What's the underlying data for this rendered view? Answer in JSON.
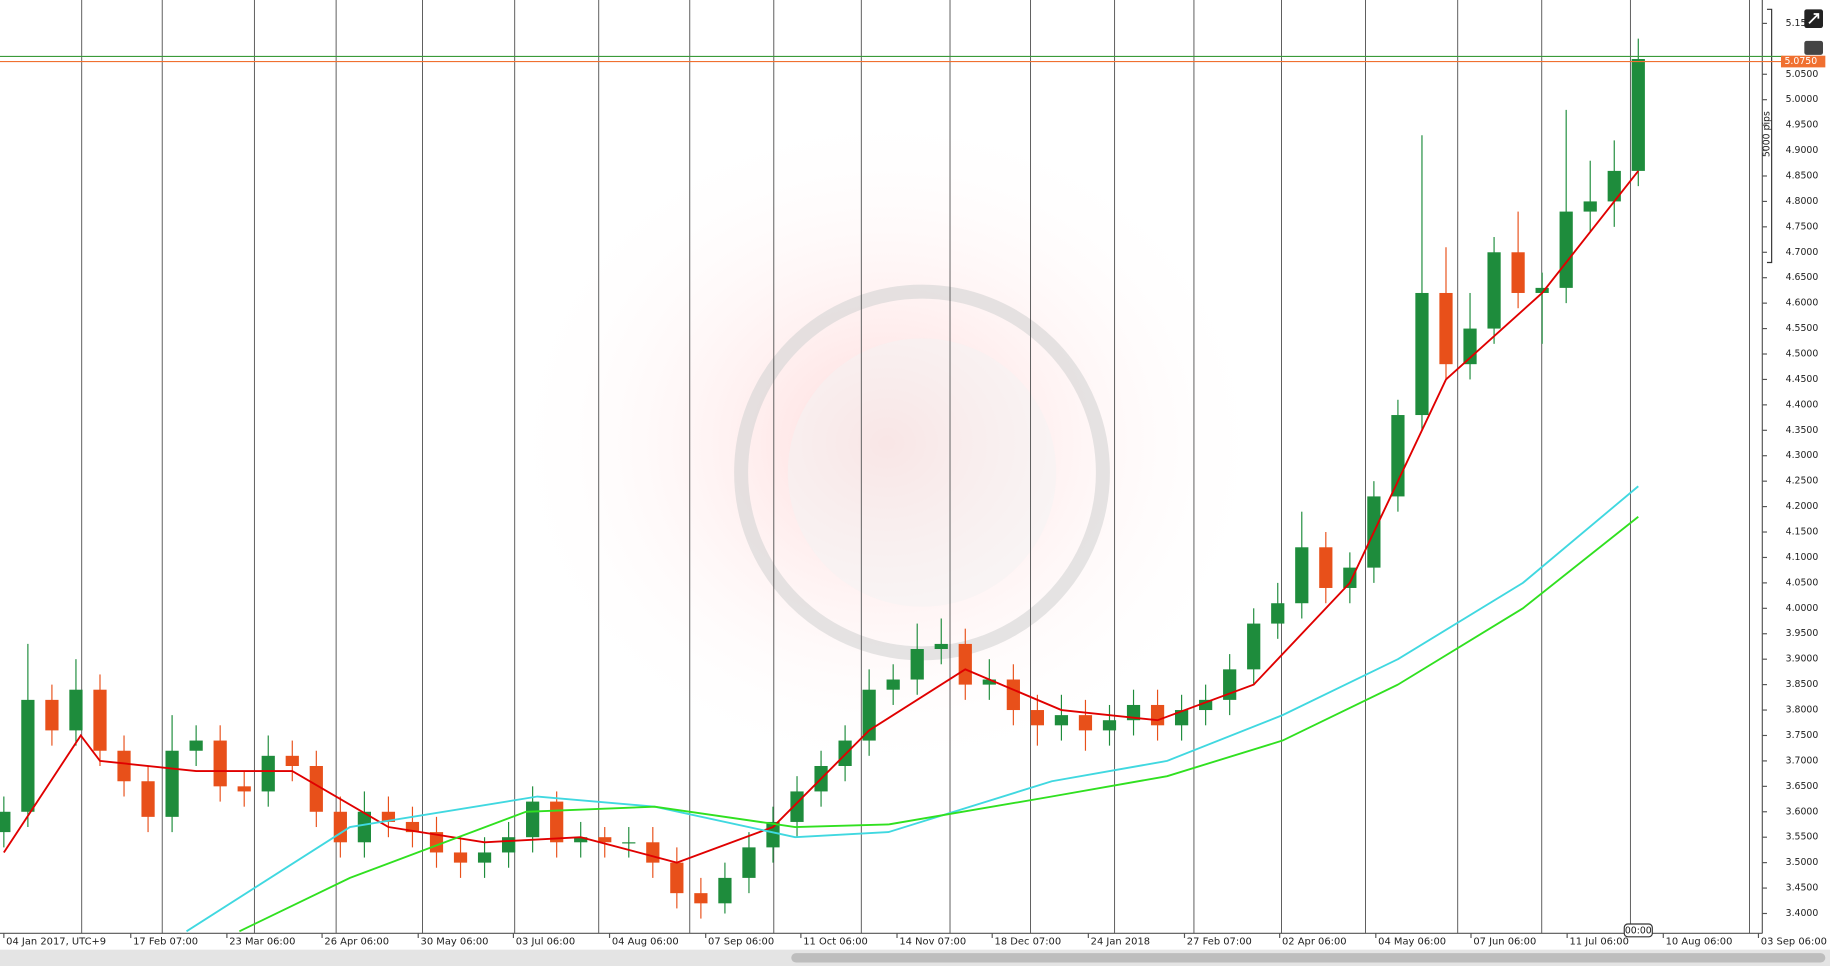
{
  "chart_data": {
    "type": "candlestick",
    "up_color": "#1e8c3c",
    "down_color": "#e8501a",
    "x": [
      0,
      0.25,
      0.5,
      0.75,
      1,
      1.25,
      1.5,
      1.75,
      2,
      2.25,
      2.5,
      2.75,
      3,
      3.25,
      3.5,
      3.75,
      4,
      4.25,
      4.5,
      4.75,
      5,
      5.25,
      5.5,
      5.75,
      6,
      6.25,
      6.5,
      6.75,
      7,
      7.25,
      7.5,
      7.75,
      8,
      8.25,
      8.5,
      8.75,
      9,
      9.25,
      9.5,
      9.75,
      10,
      10.25,
      10.5,
      10.75,
      11,
      11.25,
      11.5,
      11.75,
      12,
      12.25,
      12.5,
      12.75,
      13,
      13.25,
      13.5,
      13.75,
      14,
      14.25,
      14.5,
      14.75,
      15,
      15.25,
      15.5,
      15.75,
      16,
      16.25,
      16.5,
      16.75,
      17
    ],
    "open": [
      3.56,
      3.6,
      3.82,
      3.76,
      3.84,
      3.72,
      3.66,
      3.59,
      3.72,
      3.74,
      3.65,
      3.64,
      3.71,
      3.69,
      3.6,
      3.54,
      3.6,
      3.58,
      3.56,
      3.52,
      3.5,
      3.52,
      3.55,
      3.62,
      3.54,
      3.55,
      3.54,
      3.54,
      3.5,
      3.44,
      3.42,
      3.47,
      3.53,
      3.58,
      3.64,
      3.69,
      3.74,
      3.84,
      3.86,
      3.92,
      3.93,
      3.85,
      3.86,
      3.8,
      3.77,
      3.79,
      3.76,
      3.78,
      3.81,
      3.77,
      3.8,
      3.82,
      3.88,
      3.97,
      4.01,
      4.12,
      4.04,
      4.08,
      4.22,
      4.38,
      4.62,
      4.48,
      4.55,
      4.7,
      4.62,
      4.63,
      4.78,
      4.8,
      4.86
    ],
    "high": [
      3.63,
      3.93,
      3.85,
      3.9,
      3.87,
      3.75,
      3.69,
      3.79,
      3.77,
      3.77,
      3.68,
      3.75,
      3.74,
      3.72,
      3.63,
      3.64,
      3.63,
      3.61,
      3.59,
      3.55,
      3.55,
      3.58,
      3.65,
      3.64,
      3.58,
      3.57,
      3.57,
      3.57,
      3.53,
      3.47,
      3.5,
      3.56,
      3.61,
      3.67,
      3.72,
      3.77,
      3.88,
      3.89,
      3.97,
      3.98,
      3.96,
      3.9,
      3.89,
      3.83,
      3.83,
      3.82,
      3.81,
      3.84,
      3.84,
      3.83,
      3.85,
      3.91,
      4.0,
      4.05,
      4.19,
      4.15,
      4.11,
      4.25,
      4.41,
      4.93,
      4.71,
      4.62,
      4.73,
      4.78,
      4.66,
      4.98,
      4.88,
      4.92,
      5.12
    ],
    "low": [
      3.53,
      3.57,
      3.73,
      3.73,
      3.69,
      3.63,
      3.56,
      3.56,
      3.69,
      3.62,
      3.61,
      3.61,
      3.66,
      3.57,
      3.51,
      3.51,
      3.55,
      3.53,
      3.49,
      3.47,
      3.47,
      3.49,
      3.52,
      3.51,
      3.51,
      3.51,
      3.51,
      3.47,
      3.41,
      3.39,
      3.4,
      3.44,
      3.5,
      3.55,
      3.61,
      3.66,
      3.71,
      3.81,
      3.83,
      3.89,
      3.82,
      3.82,
      3.77,
      3.73,
      3.74,
      3.72,
      3.73,
      3.75,
      3.74,
      3.74,
      3.77,
      3.79,
      3.85,
      3.94,
      3.98,
      4.01,
      4.01,
      4.05,
      4.19,
      4.35,
      4.45,
      4.45,
      4.52,
      4.59,
      4.52,
      4.6,
      4.74,
      4.75,
      4.83
    ],
    "close": [
      3.6,
      3.82,
      3.76,
      3.84,
      3.72,
      3.66,
      3.59,
      3.72,
      3.74,
      3.65,
      3.64,
      3.71,
      3.69,
      3.6,
      3.54,
      3.6,
      3.58,
      3.56,
      3.52,
      3.5,
      3.52,
      3.55,
      3.62,
      3.54,
      3.55,
      3.54,
      3.54,
      3.5,
      3.44,
      3.42,
      3.47,
      3.53,
      3.58,
      3.64,
      3.69,
      3.74,
      3.84,
      3.86,
      3.92,
      3.93,
      3.85,
      3.86,
      3.8,
      3.77,
      3.79,
      3.76,
      3.78,
      3.81,
      3.77,
      3.8,
      3.82,
      3.88,
      3.97,
      4.01,
      4.12,
      4.04,
      4.08,
      4.22,
      4.38,
      4.62,
      4.48,
      4.55,
      4.7,
      4.62,
      4.63,
      4.78,
      4.8,
      4.86,
      5.08
    ],
    "series": [
      {
        "color": "#e00000",
        "x": [
          0,
          0.8,
          1,
          2,
          3,
          4,
          5,
          6,
          7,
          8,
          9,
          10,
          11,
          12,
          13,
          14,
          15,
          16,
          17
        ],
        "values": [
          3.52,
          3.75,
          3.7,
          3.68,
          3.68,
          3.57,
          3.54,
          3.55,
          3.5,
          3.57,
          3.76,
          3.88,
          3.8,
          3.78,
          3.85,
          4.05,
          4.45,
          4.62,
          4.86
        ]
      },
      {
        "color": "#40d8e0",
        "x": [
          1.9,
          3.6,
          5.55,
          6.77,
          8.23,
          9.2,
          10.9,
          12.1,
          13.3,
          14.5,
          15.8,
          17
        ],
        "values": [
          3.365,
          3.57,
          3.63,
          3.61,
          3.55,
          3.56,
          3.66,
          3.7,
          3.79,
          3.9,
          4.05,
          4.24
        ]
      },
      {
        "color": "#30e020",
        "x": [
          2.45,
          3.6,
          5.43,
          6.77,
          8.23,
          9.2,
          10.9,
          12.1,
          13.3,
          14.5,
          15.8,
          17
        ],
        "values": [
          3.365,
          3.47,
          3.6,
          3.61,
          3.57,
          3.575,
          3.63,
          3.67,
          3.74,
          3.85,
          4.0,
          4.18
        ]
      }
    ],
    "xlim": [
      -0.04,
      18.29
    ],
    "xticks": [
      {
        "value": 0,
        "label": "04 Jan 2017, UTC+9"
      },
      {
        "value": 1.32,
        "label": "17 Feb 07:00"
      },
      {
        "value": 2.32,
        "label": "23 Mar 06:00"
      },
      {
        "value": 3.31,
        "label": "26 Apr 06:00"
      },
      {
        "value": 4.31,
        "label": "30 May 06:00"
      },
      {
        "value": 5.3,
        "label": "03 Jul 06:00"
      },
      {
        "value": 6.3,
        "label": "04 Aug 06:00"
      },
      {
        "value": 7.3,
        "label": "07 Sep 06:00"
      },
      {
        "value": 8.29,
        "label": "11 Oct 06:00"
      },
      {
        "value": 9.29,
        "label": "14 Nov 07:00"
      },
      {
        "value": 10.28,
        "label": "18 Dec 07:00"
      },
      {
        "value": 11.28,
        "label": "24 Jan 2018"
      },
      {
        "value": 12.28,
        "label": "27 Feb 07:00"
      },
      {
        "value": 13.27,
        "label": "02 Apr 06:00"
      },
      {
        "value": 14.27,
        "label": "04 May 06:00"
      },
      {
        "value": 15.26,
        "label": "07 Jun 06:00"
      },
      {
        "value": 16.26,
        "label": "11 Jul 06:00"
      },
      {
        "value": 17.26,
        "label": "10 Aug 06:00"
      },
      {
        "value": 18.25,
        "label": "03 Sep 06:00"
      }
    ],
    "ylim": [
      3.361,
      5.196
    ],
    "yticks": [
      {
        "value": 3.4,
        "label": "3.4000"
      },
      {
        "value": 3.45,
        "label": "3.4500"
      },
      {
        "value": 3.5,
        "label": "3.5000"
      },
      {
        "value": 3.55,
        "label": "3.5500"
      },
      {
        "value": 3.6,
        "label": "3.6000"
      },
      {
        "value": 3.65,
        "label": "3.6500"
      },
      {
        "value": 3.7,
        "label": "3.7000"
      },
      {
        "value": 3.75,
        "label": "3.7500"
      },
      {
        "value": 3.8,
        "label": "3.8000"
      },
      {
        "value": 3.85,
        "label": "3.8500"
      },
      {
        "value": 3.9,
        "label": "3.9000"
      },
      {
        "value": 3.95,
        "label": "3.9500"
      },
      {
        "value": 4.0,
        "label": "4.0000"
      },
      {
        "value": 4.05,
        "label": "4.0500"
      },
      {
        "value": 4.1,
        "label": "4.1000"
      },
      {
        "value": 4.15,
        "label": "4.1500"
      },
      {
        "value": 4.2,
        "label": "4.2000"
      },
      {
        "value": 4.25,
        "label": "4.2500"
      },
      {
        "value": 4.3,
        "label": "4.3000"
      },
      {
        "value": 4.35,
        "label": "4.3500"
      },
      {
        "value": 4.4,
        "label": "4.4000"
      },
      {
        "value": 4.45,
        "label": "4.4500"
      },
      {
        "value": 4.5,
        "label": "4.5000"
      },
      {
        "value": 4.55,
        "label": "4.5500"
      },
      {
        "value": 4.6,
        "label": "4.6000"
      },
      {
        "value": 4.65,
        "label": "4.6500"
      },
      {
        "value": 4.7,
        "label": "4.7000"
      },
      {
        "value": 4.75,
        "label": "4.7500"
      },
      {
        "value": 4.8,
        "label": "4.8000"
      },
      {
        "value": 4.85,
        "label": "4.8500"
      },
      {
        "value": 4.9,
        "label": "4.9000"
      },
      {
        "value": 4.95,
        "label": "4.9500"
      },
      {
        "value": 5.0,
        "label": "5.0000"
      },
      {
        "value": 5.05,
        "label": "5.0500"
      },
      {
        "value": 5.15,
        "label": "5.15"
      }
    ],
    "price_lines": [
      {
        "value": 5.085,
        "color": "#3a9a3a"
      },
      {
        "value": 5.075,
        "color": "#f07030",
        "label": "5.0750"
      }
    ],
    "range_label": "5000 pips",
    "cursor_label": "00:00"
  }
}
